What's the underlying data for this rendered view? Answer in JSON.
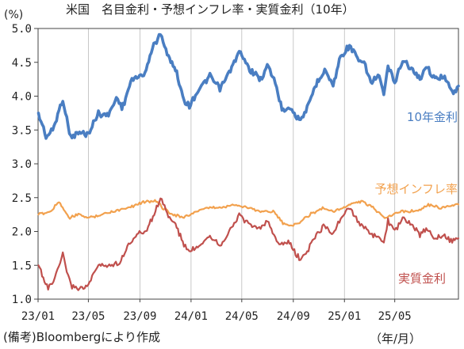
{
  "chart_data": {
    "type": "line",
    "title": "米国　名目金利・予想インフレ率・実質金利（10年）",
    "yunit": "(%)",
    "xunit": "（年/月）",
    "source": "(備考)Bloombergにより作成",
    "ylim": [
      1.0,
      5.0
    ],
    "yticks": [
      "1.0",
      "1.5",
      "2.0",
      "2.5",
      "3.0",
      "3.5",
      "4.0",
      "4.5",
      "5.0"
    ],
    "xlim": [
      "2023-01-01",
      "2025-09-30"
    ],
    "xticks": [
      {
        "date": "2023-01-01",
        "label": "23/01"
      },
      {
        "date": "2023-05-01",
        "label": "23/05"
      },
      {
        "date": "2023-09-01",
        "label": "23/09"
      },
      {
        "date": "2024-01-01",
        "label": "24/01"
      },
      {
        "date": "2024-05-01",
        "label": "24/05"
      },
      {
        "date": "2024-09-01",
        "label": "24/09"
      },
      {
        "date": "2025-01-01",
        "label": "25/01"
      },
      {
        "date": "2025-05-01",
        "label": "25/05"
      }
    ],
    "grid": "vertical",
    "legend": "inline labels at right",
    "series": [
      {
        "name": "10年金利",
        "color": "#4a7ec2",
        "points": [
          [
            "2023-01-02",
            3.75
          ],
          [
            "2023-01-20",
            3.4
          ],
          [
            "2023-02-05",
            3.5
          ],
          [
            "2023-03-01",
            3.95
          ],
          [
            "2023-03-20",
            3.4
          ],
          [
            "2023-04-10",
            3.45
          ],
          [
            "2023-05-01",
            3.45
          ],
          [
            "2023-05-25",
            3.75
          ],
          [
            "2023-06-15",
            3.7
          ],
          [
            "2023-07-10",
            4.0
          ],
          [
            "2023-07-20",
            3.8
          ],
          [
            "2023-08-10",
            4.2
          ],
          [
            "2023-08-25",
            4.3
          ],
          [
            "2023-09-10",
            4.3
          ],
          [
            "2023-10-01",
            4.7
          ],
          [
            "2023-10-20",
            4.95
          ],
          [
            "2023-11-05",
            4.6
          ],
          [
            "2023-11-25",
            4.4
          ],
          [
            "2023-12-15",
            3.95
          ],
          [
            "2023-12-28",
            3.85
          ],
          [
            "2024-01-20",
            4.1
          ],
          [
            "2024-02-15",
            4.3
          ],
          [
            "2024-03-10",
            4.1
          ],
          [
            "2024-04-01",
            4.35
          ],
          [
            "2024-04-25",
            4.65
          ],
          [
            "2024-05-20",
            4.4
          ],
          [
            "2024-06-15",
            4.25
          ],
          [
            "2024-07-01",
            4.45
          ],
          [
            "2024-07-20",
            4.2
          ],
          [
            "2024-08-05",
            3.8
          ],
          [
            "2024-08-20",
            3.85
          ],
          [
            "2024-09-15",
            3.65
          ],
          [
            "2024-10-01",
            3.75
          ],
          [
            "2024-10-20",
            4.1
          ],
          [
            "2024-11-15",
            4.4
          ],
          [
            "2024-12-05",
            4.15
          ],
          [
            "2024-12-20",
            4.55
          ],
          [
            "2025-01-13",
            4.75
          ],
          [
            "2025-02-01",
            4.55
          ],
          [
            "2025-02-20",
            4.45
          ],
          [
            "2025-03-05",
            4.2
          ],
          [
            "2025-03-25",
            4.3
          ],
          [
            "2025-04-05",
            4.0
          ],
          [
            "2025-04-15",
            4.45
          ],
          [
            "2025-05-01",
            4.2
          ],
          [
            "2025-05-20",
            4.55
          ],
          [
            "2025-06-10",
            4.4
          ],
          [
            "2025-06-30",
            4.25
          ],
          [
            "2025-07-15",
            4.45
          ],
          [
            "2025-08-05",
            4.25
          ],
          [
            "2025-08-25",
            4.3
          ],
          [
            "2025-09-15",
            4.05
          ],
          [
            "2025-09-30",
            4.15
          ]
        ]
      },
      {
        "name": "予想インフレ率",
        "color": "#f2a14e",
        "points": [
          [
            "2023-01-02",
            2.25
          ],
          [
            "2023-02-01",
            2.3
          ],
          [
            "2023-02-20",
            2.45
          ],
          [
            "2023-03-15",
            2.2
          ],
          [
            "2023-04-10",
            2.25
          ],
          [
            "2023-05-01",
            2.2
          ],
          [
            "2023-06-01",
            2.25
          ],
          [
            "2023-07-01",
            2.3
          ],
          [
            "2023-08-01",
            2.35
          ],
          [
            "2023-08-25",
            2.4
          ],
          [
            "2023-09-15",
            2.45
          ],
          [
            "2023-10-10",
            2.45
          ],
          [
            "2023-10-25",
            2.35
          ],
          [
            "2023-11-20",
            2.25
          ],
          [
            "2023-12-15",
            2.2
          ],
          [
            "2024-01-15",
            2.3
          ],
          [
            "2024-02-15",
            2.35
          ],
          [
            "2024-03-15",
            2.35
          ],
          [
            "2024-04-15",
            2.4
          ],
          [
            "2024-05-15",
            2.35
          ],
          [
            "2024-06-15",
            2.3
          ],
          [
            "2024-07-15",
            2.3
          ],
          [
            "2024-08-10",
            2.1
          ],
          [
            "2024-09-10",
            2.1
          ],
          [
            "2024-10-10",
            2.25
          ],
          [
            "2024-11-10",
            2.35
          ],
          [
            "2024-12-10",
            2.3
          ],
          [
            "2025-01-15",
            2.4
          ],
          [
            "2025-02-10",
            2.45
          ],
          [
            "2025-03-10",
            2.35
          ],
          [
            "2025-04-10",
            2.2
          ],
          [
            "2025-04-25",
            2.25
          ],
          [
            "2025-05-20",
            2.3
          ],
          [
            "2025-06-20",
            2.3
          ],
          [
            "2025-07-20",
            2.4
          ],
          [
            "2025-08-20",
            2.35
          ],
          [
            "2025-09-30",
            2.4
          ]
        ]
      },
      {
        "name": "実質金利",
        "color": "#c0504d",
        "points": [
          [
            "2023-01-02",
            1.5
          ],
          [
            "2023-01-25",
            1.15
          ],
          [
            "2023-02-10",
            1.3
          ],
          [
            "2023-03-01",
            1.65
          ],
          [
            "2023-03-20",
            1.2
          ],
          [
            "2023-04-10",
            1.15
          ],
          [
            "2023-05-01",
            1.2
          ],
          [
            "2023-05-25",
            1.5
          ],
          [
            "2023-06-20",
            1.5
          ],
          [
            "2023-07-15",
            1.55
          ],
          [
            "2023-08-05",
            1.8
          ],
          [
            "2023-08-25",
            1.95
          ],
          [
            "2023-09-15",
            2.0
          ],
          [
            "2023-10-05",
            2.25
          ],
          [
            "2023-10-20",
            2.5
          ],
          [
            "2023-11-05",
            2.25
          ],
          [
            "2023-11-25",
            2.1
          ],
          [
            "2023-12-15",
            1.8
          ],
          [
            "2023-12-28",
            1.7
          ],
          [
            "2024-01-20",
            1.8
          ],
          [
            "2024-02-15",
            1.95
          ],
          [
            "2024-03-10",
            1.8
          ],
          [
            "2024-04-01",
            2.0
          ],
          [
            "2024-04-25",
            2.25
          ],
          [
            "2024-05-20",
            2.1
          ],
          [
            "2024-06-15",
            2.05
          ],
          [
            "2024-07-01",
            2.15
          ],
          [
            "2024-07-20",
            1.9
          ],
          [
            "2024-08-05",
            1.8
          ],
          [
            "2024-08-20",
            1.85
          ],
          [
            "2024-09-15",
            1.6
          ],
          [
            "2024-10-01",
            1.65
          ],
          [
            "2024-10-20",
            1.9
          ],
          [
            "2024-11-15",
            2.1
          ],
          [
            "2024-12-05",
            1.95
          ],
          [
            "2024-12-20",
            2.15
          ],
          [
            "2025-01-13",
            2.35
          ],
          [
            "2025-02-01",
            2.15
          ],
          [
            "2025-02-20",
            2.05
          ],
          [
            "2025-03-05",
            1.95
          ],
          [
            "2025-03-25",
            1.9
          ],
          [
            "2025-04-05",
            1.85
          ],
          [
            "2025-04-15",
            2.15
          ],
          [
            "2025-05-01",
            2.0
          ],
          [
            "2025-05-20",
            2.2
          ],
          [
            "2025-06-10",
            2.1
          ],
          [
            "2025-06-30",
            1.95
          ],
          [
            "2025-07-15",
            2.05
          ],
          [
            "2025-08-05",
            1.9
          ],
          [
            "2025-08-25",
            1.95
          ],
          [
            "2025-09-15",
            1.85
          ],
          [
            "2025-09-30",
            1.9
          ]
        ]
      }
    ]
  }
}
